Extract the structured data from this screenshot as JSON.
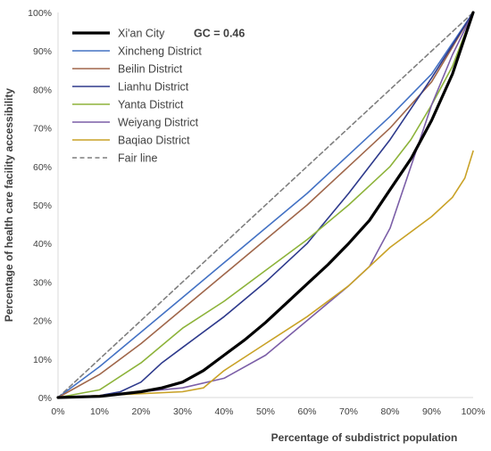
{
  "chart_data": {
    "type": "line",
    "title": "",
    "xlabel": "Percentage of subdistrict population",
    "ylabel": "Percentage of health care facility accessibility",
    "xlim": [
      0,
      100
    ],
    "ylim": [
      0,
      100
    ],
    "x_tick_labels": [
      "0%",
      "10%",
      "20%",
      "30%",
      "40%",
      "50%",
      "60%",
      "70%",
      "80%",
      "90%",
      "100%"
    ],
    "y_tick_labels": [
      "0%",
      "10%",
      "20%",
      "30%",
      "40%",
      "50%",
      "60%",
      "70%",
      "80%",
      "90%",
      "100%"
    ],
    "grid": false,
    "legend_position": "top-left",
    "series": [
      {
        "name": "Xi'an City",
        "annotation": "GC = 0.46",
        "color": "#000000",
        "style": "solid-thick",
        "x": [
          0,
          10,
          20,
          25,
          30,
          35,
          40,
          45,
          50,
          55,
          60,
          65,
          70,
          75,
          80,
          85,
          90,
          95,
          100
        ],
        "y": [
          0,
          0.3,
          1.5,
          2.5,
          4,
          7,
          11,
          15,
          19.5,
          24.5,
          29.5,
          34.5,
          40,
          46,
          54,
          62,
          72,
          84,
          100
        ]
      },
      {
        "name": "Xincheng District",
        "color": "#4472c4",
        "style": "solid",
        "x": [
          0,
          10,
          20,
          30,
          40,
          50,
          60,
          70,
          80,
          90,
          100
        ],
        "y": [
          0,
          8,
          17,
          26,
          35,
          44,
          53,
          63,
          73,
          84,
          100
        ]
      },
      {
        "name": "Beilin District",
        "color": "#a0674b",
        "style": "solid",
        "x": [
          0,
          10,
          20,
          30,
          40,
          50,
          60,
          70,
          80,
          90,
          100
        ],
        "y": [
          0,
          6,
          14,
          23,
          32,
          41,
          50,
          60,
          70,
          82,
          100
        ]
      },
      {
        "name": "Lianhu District",
        "color": "#2e3a8c",
        "style": "solid",
        "x": [
          0,
          10,
          15,
          20,
          25,
          30,
          40,
          50,
          60,
          70,
          80,
          90,
          100
        ],
        "y": [
          0,
          0.5,
          1.5,
          4,
          9,
          13,
          21,
          30,
          40,
          53,
          67,
          83,
          100
        ]
      },
      {
        "name": "Yanta District",
        "color": "#8db33a",
        "style": "solid",
        "x": [
          0,
          10,
          20,
          30,
          40,
          50,
          60,
          70,
          75,
          80,
          85,
          90,
          95,
          100
        ],
        "y": [
          0,
          2,
          9,
          18,
          25,
          33,
          41,
          50,
          55,
          60,
          67,
          76,
          86,
          100
        ]
      },
      {
        "name": "Weiyang District",
        "color": "#7b5ea7",
        "style": "solid",
        "x": [
          0,
          10,
          20,
          30,
          40,
          50,
          60,
          70,
          75,
          80,
          85,
          90,
          95,
          100
        ],
        "y": [
          0,
          0.5,
          1.5,
          2.5,
          5,
          11,
          20,
          29,
          34,
          44,
          60,
          76,
          89,
          100
        ]
      },
      {
        "name": "Baqiao District",
        "color": "#c9a227",
        "style": "solid",
        "x": [
          0,
          10,
          20,
          30,
          35,
          40,
          50,
          60,
          70,
          80,
          90,
          95,
          98,
          100
        ],
        "y": [
          0,
          0.5,
          1,
          1.5,
          2.5,
          7,
          14,
          21,
          29,
          39,
          47,
          52,
          57,
          64
        ]
      },
      {
        "name": "Fair line",
        "color": "#7f7f7f",
        "style": "dashed",
        "x": [
          0,
          100
        ],
        "y": [
          0,
          100
        ]
      }
    ]
  }
}
